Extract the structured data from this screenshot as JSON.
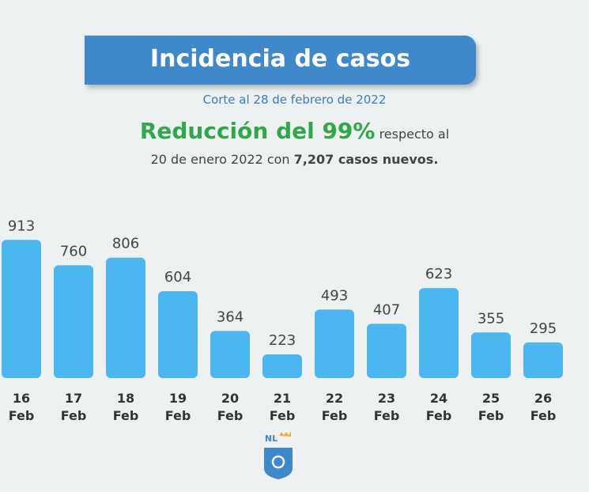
{
  "chart_data": {
    "type": "bar",
    "title": "Incidencia de casos",
    "subtitle": "Corte al 28 de febrero de 2022",
    "headline": {
      "highlight": "Reducción del 99%",
      "rest": "respecto al",
      "line2": "20 de enero 2022 con",
      "line2_bold": "7,207 casos nuevos."
    },
    "categories": [
      "16 Feb",
      "17 Feb",
      "18 Feb",
      "19 Feb",
      "20 Feb",
      "21 Feb",
      "22 Feb",
      "23 Feb",
      "24 Feb",
      "25 Feb",
      "26 Feb"
    ],
    "values": [
      913,
      760,
      806,
      604,
      364,
      223,
      493,
      407,
      623,
      355,
      295
    ],
    "color": "#4cb6f0",
    "ylim": [
      80,
      1000
    ],
    "logo": "NL"
  }
}
